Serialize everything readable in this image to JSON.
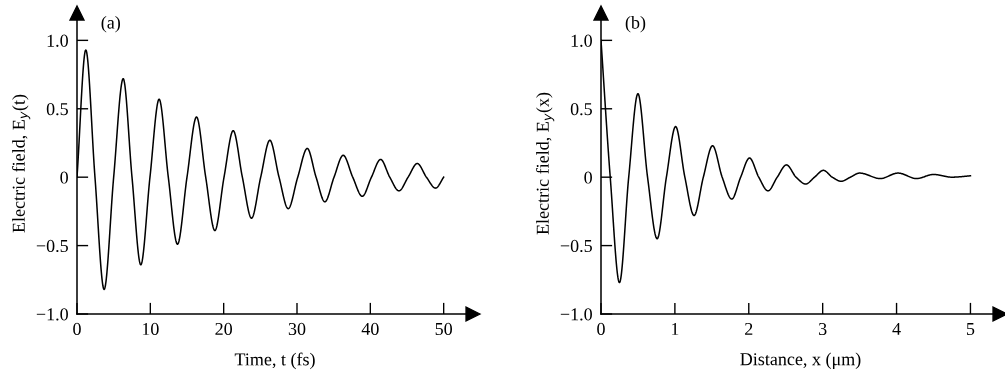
{
  "chart_data": [
    {
      "type": "line",
      "xlabel": "Time, t (fs)",
      "ylabel": "Electric field, E$_{y}$(t)",
      "annotations": [
        "(a)"
      ],
      "xlim": [
        0,
        54
      ],
      "ylim": [
        -1.0,
        1.2
      ],
      "xticks": [
        0,
        10,
        20,
        30,
        40,
        50
      ],
      "yticks": [
        {
          "value": -1.0,
          "label": "−1.0"
        },
        {
          "value": -0.5,
          "label": "−0.5"
        },
        0,
        {
          "value": 0.5,
          "label": "0.5"
        },
        {
          "value": 1.0,
          "label": "1.0"
        }
      ],
      "series": [
        {
          "color": "#000000",
          "x": [
            0,
            1.2,
            2.45,
            3.7,
            5.0,
            6.3,
            7.5,
            8.7,
            9.95,
            11.2,
            12.45,
            13.7,
            15.0,
            16.3,
            17.55,
            18.8,
            20.05,
            21.3,
            22.55,
            23.8,
            25.05,
            26.3,
            27.55,
            28.8,
            30.1,
            31.4,
            32.6,
            33.8,
            35.05,
            36.3,
            37.6,
            38.9,
            40.15,
            41.4,
            42.65,
            43.9,
            45.15,
            46.4,
            47.65,
            48.9,
            50
          ],
          "values": [
            0,
            0.93,
            0,
            -0.82,
            0,
            0.72,
            0,
            -0.64,
            0,
            0.57,
            0,
            -0.49,
            0,
            0.44,
            0,
            -0.39,
            0,
            0.34,
            0,
            -0.3,
            0,
            0.27,
            0,
            -0.23,
            0,
            0.21,
            0,
            -0.18,
            0,
            0.16,
            0,
            -0.14,
            0,
            0.13,
            0,
            -0.1,
            0,
            0.1,
            0,
            -0.08,
            0
          ]
        }
      ]
    },
    {
      "type": "line",
      "xlabel": "Distance, x (μm)",
      "ylabel": "Electric field, E$_{y}$(x)",
      "annotations": [
        "(b)"
      ],
      "xlim": [
        0,
        5.4
      ],
      "ylim": [
        -1.0,
        1.2
      ],
      "xticks": [
        0,
        1,
        2,
        3,
        4,
        5
      ],
      "yticks": [
        {
          "value": -1.0,
          "label": "−1.0"
        },
        {
          "value": -0.5,
          "label": "−0.5"
        },
        0,
        {
          "value": 0.5,
          "label": "0.5"
        },
        {
          "value": 1.0,
          "label": "1.0"
        }
      ],
      "series": [
        {
          "color": "#000000",
          "x": [
            0,
            0.125,
            0.25,
            0.375,
            0.5,
            0.63,
            0.76,
            0.885,
            1.01,
            1.135,
            1.26,
            1.385,
            1.51,
            1.64,
            1.77,
            1.89,
            2.01,
            2.135,
            2.26,
            2.385,
            2.51,
            2.64,
            2.77,
            2.89,
            3.01,
            3.13,
            3.25,
            3.375,
            3.5,
            3.78,
            4.02,
            4.27,
            4.5,
            4.75,
            5.0
          ],
          "values": [
            1.0,
            0,
            -0.77,
            0,
            0.61,
            0,
            -0.45,
            0,
            0.37,
            0,
            -0.28,
            0,
            0.23,
            0,
            -0.16,
            0,
            0.14,
            0,
            -0.1,
            0,
            0.09,
            0,
            -0.05,
            0,
            0.05,
            0,
            -0.03,
            0,
            0.03,
            -0.01,
            0.03,
            -0.01,
            0.02,
            0.0,
            0.01
          ]
        }
      ]
    }
  ]
}
